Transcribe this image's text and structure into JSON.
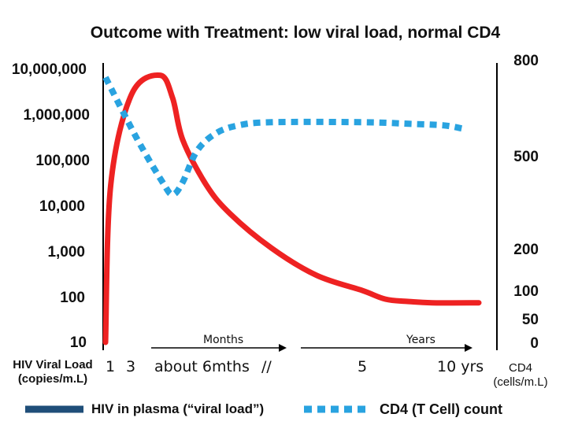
{
  "chart_data": {
    "type": "line",
    "title": "Outcome with Treatment: low viral load, normal CD4",
    "y_left": {
      "label_line1": "HIV Viral Load",
      "label_line2": "(copies/m.L)",
      "scale": "log",
      "ticks": [
        "10,000,000",
        "1,000,000",
        "100,000",
        "10,000",
        "1,000",
        "100",
        "10"
      ],
      "range": [
        10,
        10000000
      ]
    },
    "y_right": {
      "label_line1": "CD4",
      "label_line2": "(cells/m.L)",
      "ticks": [
        "800",
        "500",
        "200",
        "100",
        "50",
        "0"
      ]
    },
    "x_ticks": [
      "1",
      "3",
      "about 6mths",
      "//",
      "5",
      "10 yrs"
    ],
    "periods": [
      {
        "label": "Months"
      },
      {
        "label": "Years"
      }
    ],
    "series": [
      {
        "name": "HIV in plasma (“viral load”)",
        "color": "#ee2222",
        "style": "solid",
        "axis": "left",
        "note": "viral load, copies/mL; x as time index 0 (infection) to 10 (10 yrs)",
        "points": [
          [
            0.0,
            10
          ],
          [
            0.05,
            30000
          ],
          [
            0.25,
            3000000
          ],
          [
            0.55,
            8000000
          ],
          [
            0.8,
            2500000
          ],
          [
            1.0,
            300000
          ],
          [
            1.5,
            30000
          ],
          [
            2.0,
            7000
          ],
          [
            3.0,
            1200
          ],
          [
            4.0,
            300
          ],
          [
            5.0,
            140
          ],
          [
            6.0,
            90
          ],
          [
            7.0,
            80
          ],
          [
            8.0,
            75
          ],
          [
            10.0,
            75
          ]
        ]
      },
      {
        "name": "CD4 (T Cell) count",
        "color": "#29a3e0",
        "style": "dashed",
        "axis": "right",
        "note": "CD4 cells/mL",
        "points": [
          [
            0.0,
            750
          ],
          [
            0.3,
            560
          ],
          [
            0.6,
            420
          ],
          [
            0.8,
            380
          ],
          [
            1.0,
            420
          ],
          [
            1.3,
            520
          ],
          [
            1.7,
            575
          ],
          [
            2.2,
            600
          ],
          [
            3.0,
            610
          ],
          [
            5.0,
            610
          ],
          [
            7.0,
            605
          ],
          [
            8.5,
            600
          ],
          [
            9.3,
            590
          ]
        ]
      }
    ],
    "legend": [
      {
        "label": "HIV in plasma (“viral load”)",
        "color": "#1f4e79",
        "style": "solid"
      },
      {
        "label": "CD4 (T Cell) count",
        "color": "#29a3e0",
        "style": "dashed"
      }
    ]
  }
}
